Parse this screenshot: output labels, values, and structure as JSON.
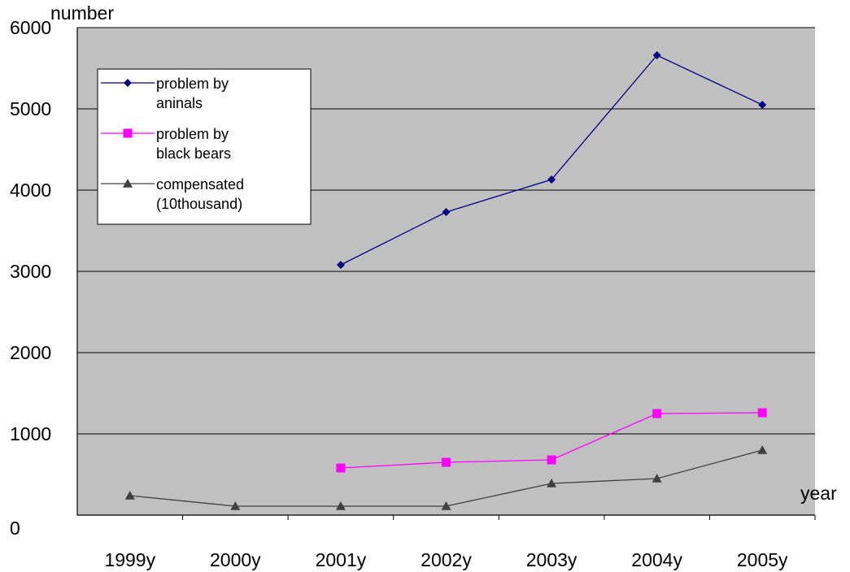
{
  "chart_data": {
    "type": "line",
    "title": "",
    "xlabel": "year",
    "ylabel": "number",
    "categories": [
      "1999y",
      "2000y",
      "2001y",
      "2002y",
      "2003y",
      "2004y",
      "2005y"
    ],
    "ylim": [
      0,
      6000
    ],
    "yticks": [
      "0",
      "1000",
      "2000",
      "3000",
      "4000",
      "5000",
      "6000"
    ],
    "grid": true,
    "legend_position": "top-left",
    "series": [
      {
        "name": "problem by aninals",
        "legend_lines": [
          "problem by",
          "aninals"
        ],
        "color": "#000080",
        "marker": "diamond",
        "values": [
          null,
          null,
          3080,
          3730,
          4130,
          5660,
          5050
        ]
      },
      {
        "name": "problem by black bears",
        "legend_lines": [
          "problem by",
          "black bears"
        ],
        "color": "#ff00ff",
        "marker": "square",
        "values": [
          null,
          null,
          580,
          650,
          680,
          1250,
          1260
        ]
      },
      {
        "name": "compensated (10thousand)",
        "legend_lines": [
          "compensated",
          "(10thousand)"
        ],
        "color": "#404040",
        "marker": "triangle",
        "values": [
          240,
          110,
          110,
          110,
          390,
          450,
          800
        ]
      }
    ]
  }
}
